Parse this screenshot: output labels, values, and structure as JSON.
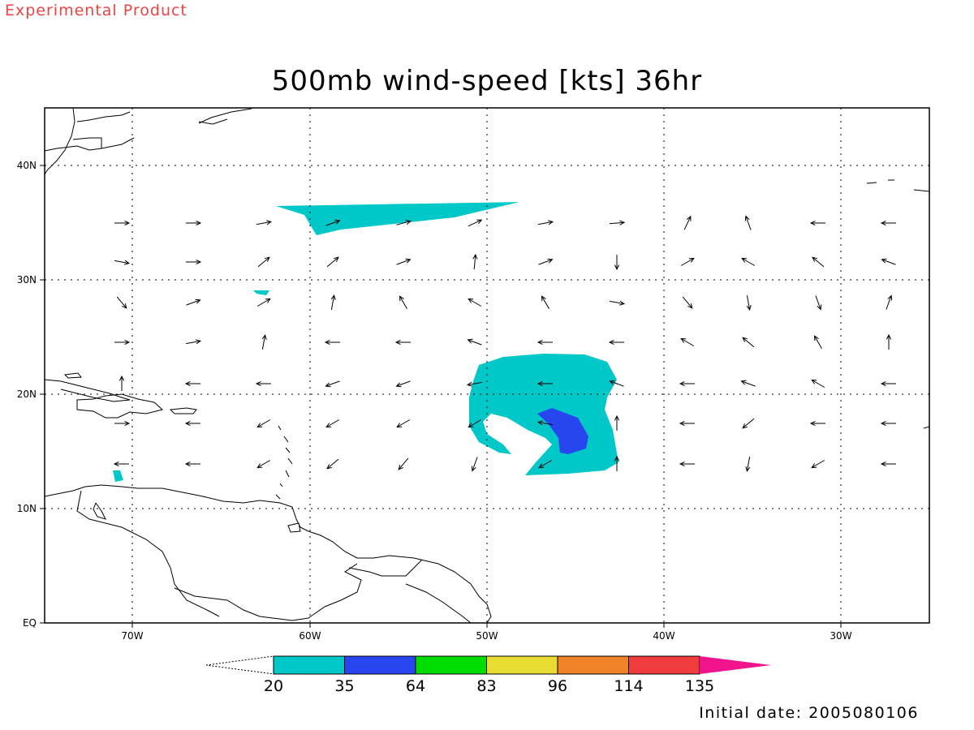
{
  "header": {
    "product_label": "Experimental Product",
    "title": "500mb wind-speed [kts] 36hr"
  },
  "footer": {
    "initial_date": "Initial date: 2005080106"
  },
  "map": {
    "projection": "latitude-longitude",
    "lon_range": [
      -75,
      -25
    ],
    "lat_range": [
      0,
      45
    ],
    "grid": "dotted",
    "lon_ticks": [
      "70W",
      "60W",
      "50W",
      "40W",
      "30W"
    ],
    "lat_ticks": [
      "EQ",
      "10N",
      "20N",
      "30N",
      "40N"
    ]
  },
  "colorbar": {
    "thresholds": [
      "20",
      "35",
      "64",
      "83",
      "96",
      "114",
      "135"
    ],
    "colors": [
      "#00c8c8",
      "#2846f0",
      "#00dc00",
      "#e6dc32",
      "#f08228",
      "#f03c3c",
      "#f0148c"
    ]
  },
  "chart_data": {
    "type": "heatmap",
    "title": "500mb wind-speed [kts] 36hr",
    "variable": "500mb wind speed",
    "units": "kts",
    "levels": [
      20,
      35,
      64,
      83,
      96,
      114,
      135
    ],
    "shaded_areas": [
      {
        "region": "elongated band near 33-37N, 62W-48W",
        "level_min": 20,
        "level_max": 35
      },
      {
        "region": "large area near 13-23N, 51W-43W",
        "level_min": 20,
        "level_max": 35
      },
      {
        "region": "core near 15-19N, 46W-44W",
        "level_min": 35,
        "level_max": 64
      },
      {
        "region": "small patch near 29N, 62W",
        "level_min": 20,
        "level_max": 35
      },
      {
        "region": "small patch near 13N, 68W",
        "level_min": 20,
        "level_max": 35
      }
    ]
  }
}
